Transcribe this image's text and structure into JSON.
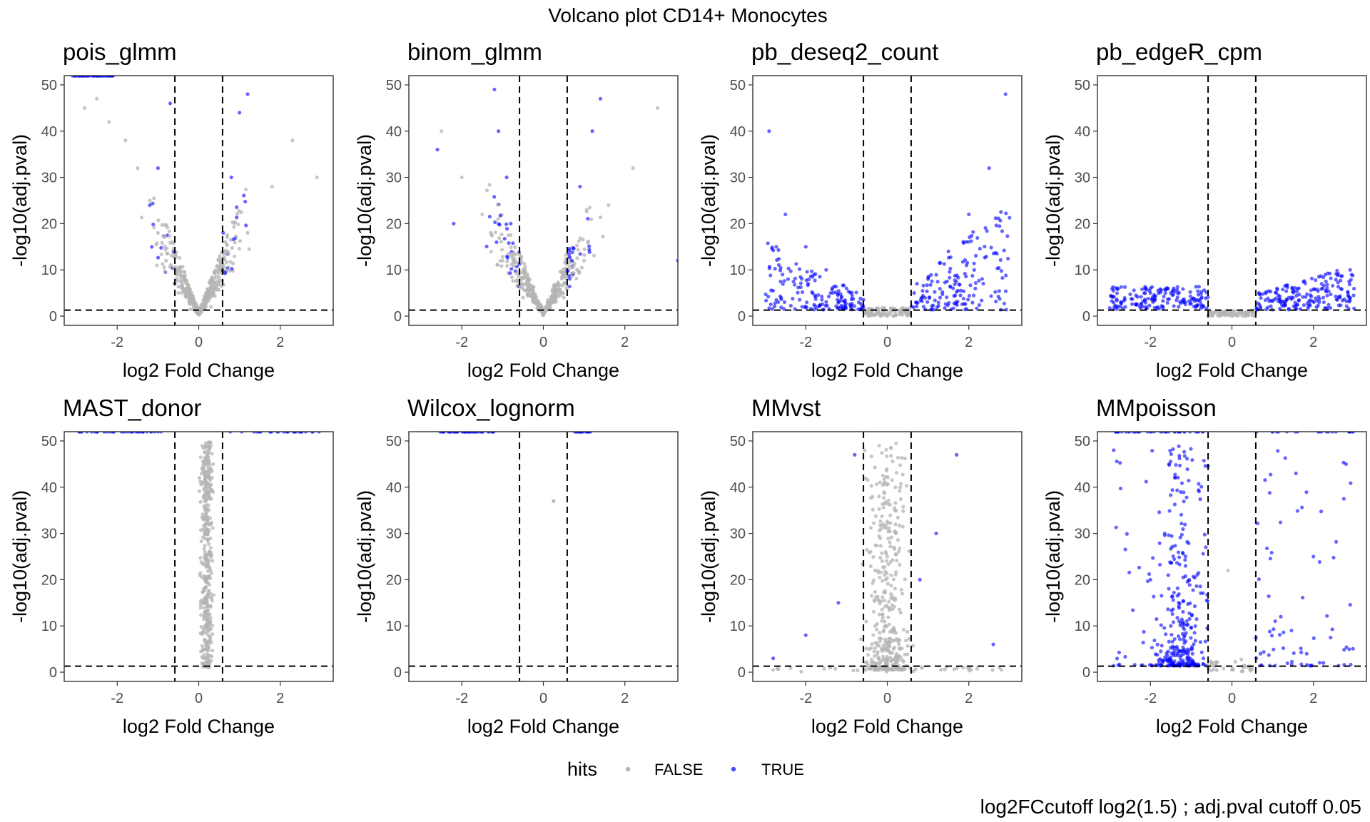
{
  "figure": {
    "title": "Volcano plot CD14+ Monocytes",
    "caption": "log2FCcutoff log2(1.5) ; adj.pval cutoff 0.05",
    "legend": {
      "title": "hits",
      "items": [
        "FALSE",
        "TRUE"
      ],
      "position": "bottom"
    }
  },
  "colors": {
    "false": "#b4b4b4",
    "true": "#0000ff",
    "cutoff_line": "#000000",
    "panel_border": "#333333"
  },
  "chart_data": [
    {
      "type": "scatter",
      "title": "pois_glmm",
      "xlabel": "log2 Fold Change",
      "ylabel": "-log10(adj.pval)",
      "xlim": [
        -3.3,
        3.3
      ],
      "ylim": [
        -2,
        52
      ],
      "x_ticks": [
        -2,
        0,
        2
      ],
      "y_ticks": [
        0,
        10,
        20,
        30,
        40,
        50
      ],
      "fc_cutoff": 0.585,
      "p_cutoff": 1.301,
      "grid": false,
      "profile": "vshape_sharp",
      "capped_hits": true,
      "series": [
        {
          "name": "FALSE",
          "points": [
            [
              -2.8,
              45
            ],
            [
              -2.5,
              47
            ],
            [
              -2.2,
              42
            ],
            [
              -1.8,
              38
            ],
            [
              -1.5,
              32
            ],
            [
              -1.2,
              25
            ],
            [
              -1.0,
              18
            ],
            [
              -0.8,
              12
            ],
            [
              -0.5,
              5
            ],
            [
              -0.2,
              1.5
            ],
            [
              0.0,
              0.3
            ],
            [
              0.3,
              2
            ],
            [
              0.7,
              10
            ],
            [
              1.2,
              18
            ],
            [
              1.8,
              28
            ],
            [
              2.3,
              38
            ],
            [
              2.9,
              30
            ]
          ]
        },
        {
          "name": "TRUE",
          "points": [
            [
              -0.7,
              46
            ],
            [
              -1.0,
              32
            ],
            [
              -1.2,
              24
            ],
            [
              0.6,
              18
            ],
            [
              0.8,
              30
            ],
            [
              1.0,
              44
            ],
            [
              1.2,
              48
            ],
            [
              -2.9,
              52
            ],
            [
              -2.2,
              52
            ]
          ]
        }
      ]
    },
    {
      "type": "scatter",
      "title": "binom_glmm",
      "xlabel": "log2 Fold Change",
      "ylabel": "-log10(adj.pval)",
      "xlim": [
        -3.3,
        3.3
      ],
      "ylim": [
        -2,
        52
      ],
      "x_ticks": [
        -2,
        0,
        2
      ],
      "y_ticks": [
        0,
        10,
        20,
        30,
        40,
        50
      ],
      "fc_cutoff": 0.585,
      "p_cutoff": 1.301,
      "grid": false,
      "profile": "vshape_wide",
      "capped_hits": false,
      "series": [
        {
          "name": "FALSE",
          "points": [
            [
              -2.5,
              40
            ],
            [
              -2.0,
              30
            ],
            [
              -1.5,
              22
            ],
            [
              -1.0,
              12
            ],
            [
              -0.5,
              4
            ],
            [
              0.0,
              0.3
            ],
            [
              0.5,
              4
            ],
            [
              1.0,
              12
            ],
            [
              1.6,
              24
            ],
            [
              2.2,
              32
            ],
            [
              2.8,
              45
            ]
          ]
        },
        {
          "name": "TRUE",
          "points": [
            [
              -1.2,
              49
            ],
            [
              -1.1,
              40
            ],
            [
              -0.9,
              30
            ],
            [
              -0.8,
              20
            ],
            [
              -2.6,
              36
            ],
            [
              -2.2,
              20
            ],
            [
              0.7,
              12
            ],
            [
              0.9,
              28
            ],
            [
              1.2,
              40
            ],
            [
              1.4,
              47
            ],
            [
              3.3,
              12
            ]
          ]
        }
      ]
    },
    {
      "type": "scatter",
      "title": "pb_deseq2_count",
      "xlabel": "log2 Fold Change",
      "ylabel": "-log10(adj.pval)",
      "xlim": [
        -3.3,
        3.3
      ],
      "ylim": [
        -2,
        52
      ],
      "x_ticks": [
        -2,
        0,
        2
      ],
      "y_ticks": [
        0,
        10,
        20,
        30,
        40,
        50
      ],
      "fc_cutoff": 0.585,
      "p_cutoff": 1.301,
      "grid": false,
      "profile": "scatter_wide",
      "capped_hits": false,
      "series": [
        {
          "name": "FALSE",
          "points": [
            [
              -0.5,
              1
            ],
            [
              -0.2,
              0.6
            ],
            [
              0.0,
              0.2
            ],
            [
              0.3,
              0.8
            ],
            [
              0.5,
              1.2
            ]
          ]
        },
        {
          "name": "TRUE",
          "points": [
            [
              -2.9,
              40
            ],
            [
              -2.5,
              22
            ],
            [
              -2.0,
              15
            ],
            [
              -1.5,
              10
            ],
            [
              -1.0,
              6
            ],
            [
              -0.7,
              3
            ],
            [
              0.7,
              3
            ],
            [
              1.0,
              8
            ],
            [
              1.5,
              14
            ],
            [
              2.0,
              22
            ],
            [
              2.5,
              32
            ],
            [
              2.9,
              48
            ]
          ]
        }
      ]
    },
    {
      "type": "scatter",
      "title": "pb_edgeR_cpm",
      "xlabel": "log2 Fold Change",
      "ylabel": "-log10(adj.pval)",
      "xlim": [
        -3.3,
        3.3
      ],
      "ylim": [
        -2,
        52
      ],
      "x_ticks": [
        -2,
        0,
        2
      ],
      "y_ticks": [
        0,
        10,
        20,
        30,
        40,
        50
      ],
      "fc_cutoff": 0.585,
      "p_cutoff": 1.301,
      "grid": false,
      "profile": "flat_low",
      "capped_hits": false,
      "series": [
        {
          "name": "FALSE",
          "points": [
            [
              -0.5,
              0.8
            ],
            [
              0.0,
              0.2
            ],
            [
              0.5,
              0.8
            ]
          ]
        },
        {
          "name": "TRUE",
          "points": [
            [
              -2.8,
              6
            ],
            [
              -2.0,
              5
            ],
            [
              -1.2,
              3
            ],
            [
              -0.7,
              2
            ],
            [
              0.7,
              2
            ],
            [
              1.5,
              4
            ],
            [
              2.2,
              7
            ],
            [
              2.9,
              10
            ]
          ]
        }
      ]
    },
    {
      "type": "scatter",
      "title": "MAST_donor",
      "xlabel": "log2 Fold Change",
      "ylabel": "-log10(adj.pval)",
      "xlim": [
        -3.3,
        3.3
      ],
      "ylim": [
        -2,
        52
      ],
      "x_ticks": [
        -2,
        0,
        2
      ],
      "y_ticks": [
        0,
        10,
        20,
        30,
        40,
        50
      ],
      "fc_cutoff": 0.585,
      "p_cutoff": 1.301,
      "grid": false,
      "profile": "narrow_column",
      "capped_hits": true,
      "series": [
        {
          "name": "FALSE",
          "points": [
            [
              0.1,
              5
            ],
            [
              0.2,
              15
            ],
            [
              0.15,
              25
            ],
            [
              0.25,
              35
            ],
            [
              0.2,
              45
            ],
            [
              0.3,
              49
            ]
          ]
        },
        {
          "name": "TRUE",
          "points": [
            [
              -2.5,
              52
            ],
            [
              -1.5,
              52
            ],
            [
              1.5,
              52
            ],
            [
              2.5,
              52
            ]
          ]
        }
      ]
    },
    {
      "type": "scatter",
      "title": "Wilcox_lognorm",
      "xlabel": "log2 Fold Change",
      "ylabel": "-log10(adj.pval)",
      "xlim": [
        -3.3,
        3.3
      ],
      "ylim": [
        -2,
        52
      ],
      "x_ticks": [
        -2,
        0,
        2
      ],
      "y_ticks": [
        0,
        10,
        20,
        30,
        40,
        50
      ],
      "fc_cutoff": 0.585,
      "p_cutoff": 1.301,
      "grid": false,
      "profile": "sparse",
      "capped_hits": true,
      "series": [
        {
          "name": "FALSE",
          "points": [
            [
              0.25,
              37
            ]
          ]
        },
        {
          "name": "TRUE",
          "points": [
            [
              -2.5,
              52
            ],
            [
              -1.5,
              52
            ],
            [
              0.8,
              52
            ],
            [
              1.1,
              52
            ]
          ]
        }
      ]
    },
    {
      "type": "scatter",
      "title": "MMvst",
      "xlabel": "log2 Fold Change",
      "ylabel": "-log10(adj.pval)",
      "xlim": [
        -3.3,
        3.3
      ],
      "ylim": [
        -2,
        52
      ],
      "x_ticks": [
        -2,
        0,
        2
      ],
      "y_ticks": [
        0,
        10,
        20,
        30,
        40,
        50
      ],
      "fc_cutoff": 0.585,
      "p_cutoff": 1.301,
      "grid": false,
      "profile": "narrow_dense",
      "capped_hits": false,
      "series": [
        {
          "name": "FALSE",
          "points": [
            [
              -0.3,
              10
            ],
            [
              0.0,
              25
            ],
            [
              0.2,
              40
            ],
            [
              -0.2,
              49
            ],
            [
              0.3,
              5
            ],
            [
              -2.8,
              0.5
            ],
            [
              2.8,
              0.5
            ]
          ]
        },
        {
          "name": "TRUE",
          "points": [
            [
              -2.8,
              3
            ],
            [
              -2.0,
              8
            ],
            [
              -1.2,
              15
            ],
            [
              -0.8,
              47
            ],
            [
              0.8,
              20
            ],
            [
              1.2,
              30
            ],
            [
              1.7,
              47
            ],
            [
              2.6,
              6
            ]
          ]
        }
      ]
    },
    {
      "type": "scatter",
      "title": "MMpoisson",
      "xlabel": "log2 Fold Change",
      "ylabel": "-log10(adj.pval)",
      "xlim": [
        -3.3,
        3.3
      ],
      "ylim": [
        -2,
        52
      ],
      "x_ticks": [
        -2,
        0,
        2
      ],
      "y_ticks": [
        0,
        10,
        20,
        30,
        40,
        50
      ],
      "fc_cutoff": 0.585,
      "p_cutoff": 1.301,
      "grid": false,
      "profile": "left_heavy",
      "capped_hits": true,
      "series": [
        {
          "name": "FALSE",
          "points": [
            [
              -0.4,
              2
            ],
            [
              0.0,
              0.5
            ],
            [
              0.3,
              1.5
            ],
            [
              -0.1,
              22
            ]
          ]
        },
        {
          "name": "TRUE",
          "points": [
            [
              -2.9,
              48
            ],
            [
              -2.0,
              20
            ],
            [
              -1.5,
              10
            ],
            [
              -1.0,
              5
            ],
            [
              -0.7,
              3
            ],
            [
              0.7,
              4
            ],
            [
              1.2,
              12
            ],
            [
              2.0,
              25
            ],
            [
              2.8,
              45
            ],
            [
              -2.0,
              52
            ],
            [
              1.0,
              52
            ]
          ]
        }
      ]
    }
  ]
}
